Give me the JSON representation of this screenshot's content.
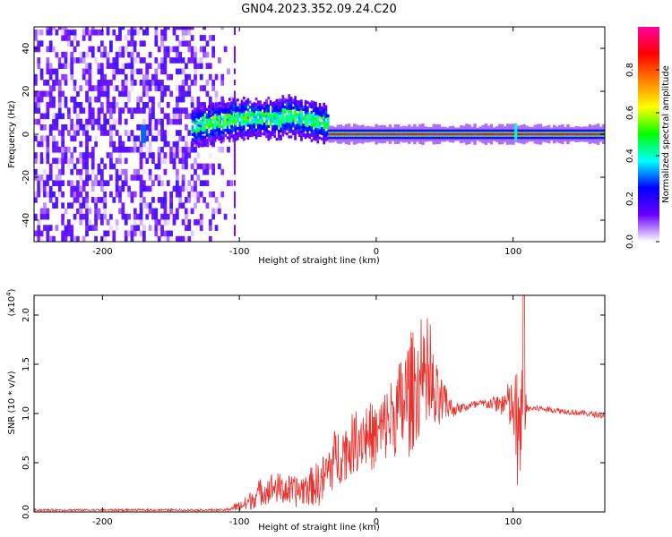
{
  "title": "GN04.2023.352.09.24.C20",
  "colors": {
    "snr_line": "#e8322e",
    "text": "#000000"
  },
  "chart_data": [
    {
      "type": "heatmap",
      "xlabel": "Height of straight line (km)",
      "ylabel": "Frequency (Hz)",
      "xlim": [
        -250,
        167
      ],
      "ylim": [
        -50,
        50
      ],
      "xticks": [
        -200,
        -100,
        0,
        100
      ],
      "yticks": [
        -40,
        -20,
        0,
        20,
        40
      ],
      "xtick_labels": [
        "-200",
        "-100",
        "0",
        "100"
      ],
      "ytick_labels": [
        "-40",
        "-20",
        "0",
        "20",
        "40"
      ],
      "colorbar": {
        "label": "Normalized spectral amplitude",
        "range": [
          0,
          1
        ],
        "ticks": [
          0.0,
          0.2,
          0.4,
          0.6,
          0.8
        ],
        "tick_labels": [
          "0.0",
          "0.2",
          "0.4",
          "0.6",
          "0.8"
        ],
        "colormap": [
          "#ffffff",
          "#6a00ff",
          "#0000ff",
          "#00ffff",
          "#00ff00",
          "#ffff00",
          "#ff8000",
          "#ff0000",
          "#ff00a0"
        ]
      },
      "features": [
        {
          "name": "noise region",
          "x_range": [
            -250,
            -105
          ],
          "freq_range": [
            -50,
            50
          ],
          "amplitude": 0.1
        },
        {
          "name": "spread signal",
          "x_range": [
            -135,
            -35
          ],
          "freq_center": 3,
          "freq_halfwidth": 7,
          "amplitude": 0.35
        },
        {
          "name": "clean carrier",
          "x_range": [
            -35,
            167
          ],
          "freq_center": 0,
          "freq_halfwidth": 2,
          "amplitude": 0.95
        }
      ]
    },
    {
      "type": "line",
      "xlabel": "Height of straight line (km)",
      "ylabel": "SNR (10 * v/v)",
      "scale_label": "(x10",
      "scale_exp": "4",
      "scale_close": ")",
      "xlim": [
        -250,
        167
      ],
      "ylim": [
        0,
        2.2
      ],
      "xticks": [
        -200,
        -100,
        0,
        100
      ],
      "yticks": [
        0.0,
        0.5,
        1.0,
        1.5,
        2.0
      ],
      "xtick_labels": [
        "-200",
        "-100",
        "0",
        "100"
      ],
      "ytick_labels": [
        "0.0",
        "0.5",
        "1.0",
        "1.5",
        "2.0"
      ],
      "series": [
        {
          "color": "#e8322e",
          "x": [
            -250,
            -200,
            -150,
            -110,
            -95,
            -85,
            -75,
            -60,
            -50,
            -40,
            -30,
            -20,
            -10,
            0,
            10,
            15,
            20,
            25,
            30,
            35,
            40,
            45,
            50,
            55,
            60,
            70,
            80,
            90,
            95,
            100,
            103,
            106,
            108,
            110,
            120,
            140,
            167
          ],
          "y": [
            0.02,
            0.02,
            0.02,
            0.02,
            0.08,
            0.2,
            0.25,
            0.2,
            0.25,
            0.3,
            0.55,
            0.65,
            0.8,
            0.75,
            0.95,
            1.0,
            1.1,
            1.2,
            1.3,
            1.25,
            1.2,
            1.1,
            1.1,
            1.05,
            1.05,
            1.08,
            1.1,
            1.1,
            1.1,
            1.05,
            0.8,
            0.7,
            1.1,
            1.05,
            1.05,
            1.02,
            0.98
          ],
          "spread": [
            0.01,
            0.01,
            0.01,
            0.01,
            0.08,
            0.14,
            0.16,
            0.16,
            0.18,
            0.25,
            0.3,
            0.3,
            0.35,
            0.35,
            0.4,
            0.45,
            0.6,
            0.65,
            0.55,
            0.55,
            0.55,
            0.35,
            0.2,
            0.1,
            0.05,
            0.05,
            0.05,
            0.1,
            0.2,
            0.3,
            0.7,
            0.8,
            0.45,
            0.04,
            0.03,
            0.03,
            0.03
          ]
        }
      ]
    }
  ]
}
